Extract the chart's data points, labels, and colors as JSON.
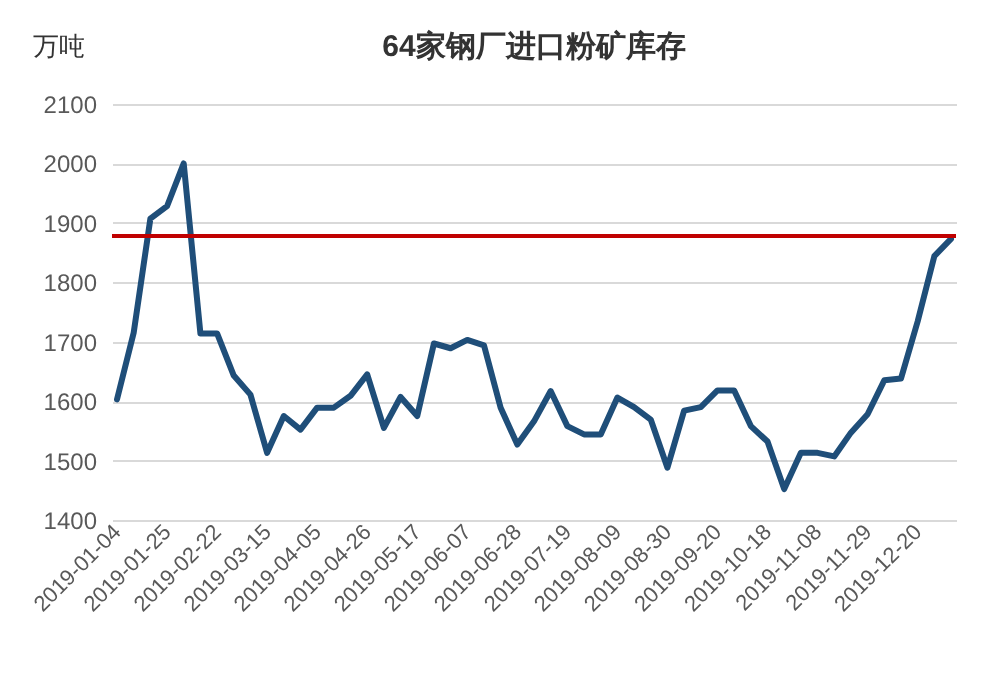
{
  "chart_data": {
    "type": "line",
    "title": "64家钢厂进口粉矿库存",
    "ylabel": "万吨",
    "categories": [
      "2019-01-04",
      null,
      null,
      "2019-01-25",
      null,
      null,
      "2019-02-22",
      null,
      null,
      "2019-03-15",
      null,
      null,
      "2019-04-05",
      null,
      null,
      "2019-04-26",
      null,
      null,
      "2019-05-17",
      null,
      null,
      "2019-06-07",
      null,
      null,
      "2019-06-28",
      null,
      null,
      "2019-07-19",
      null,
      null,
      "2019-08-09",
      null,
      null,
      "2019-08-30",
      null,
      null,
      "2019-09-20",
      null,
      null,
      "2019-10-18",
      null,
      null,
      "2019-11-08",
      null,
      null,
      "2019-11-29",
      null,
      null,
      "2019-12-20",
      null,
      null
    ],
    "series": [
      {
        "color": "#1f4e79",
        "values": [
          1603,
          1715,
          1907,
          1928,
          2000,
          1714,
          1714,
          1643,
          1611,
          1513,
          1575,
          1552,
          1589,
          1589,
          1609,
          1645,
          1555,
          1607,
          1575,
          1697,
          1689,
          1703,
          1694,
          1589,
          1527,
          1566,
          1617,
          1558,
          1544,
          1544,
          1606,
          1590,
          1569,
          1488,
          1584,
          1590,
          1618,
          1618,
          1558,
          1532,
          1452,
          1513,
          1513,
          1507,
          1547,
          1578,
          1635,
          1638,
          1734,
          1844,
          1873
        ]
      }
    ],
    "ylim": [
      1400,
      2100
    ],
    "yticks": [
      1400,
      1500,
      1600,
      1700,
      1800,
      1900,
      2000,
      2100
    ],
    "grid": "y",
    "ref_lines": [
      {
        "axis": "y",
        "value": 1878,
        "color": "#c00000"
      }
    ]
  }
}
